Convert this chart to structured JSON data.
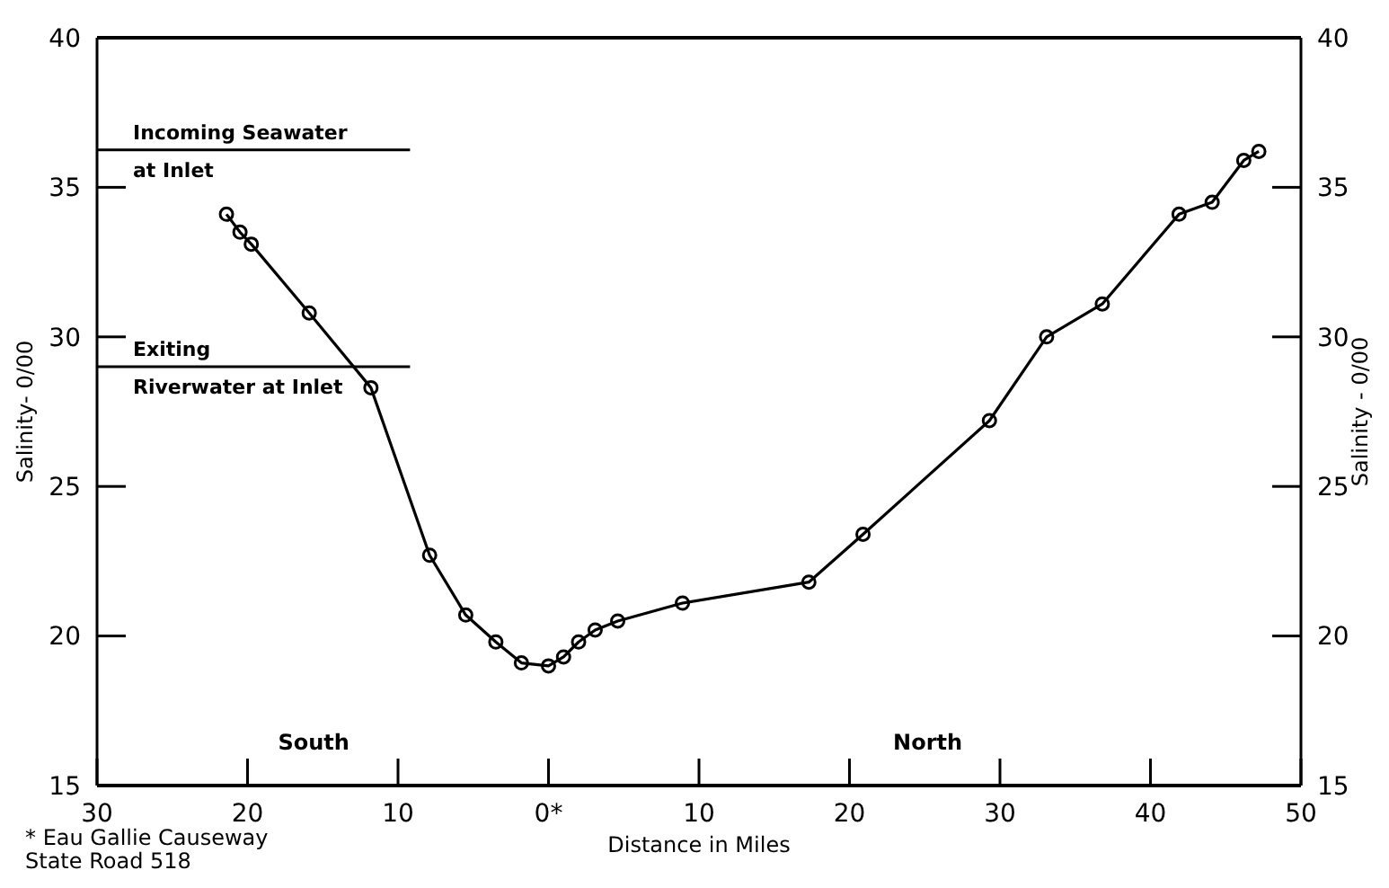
{
  "chart_data": {
    "type": "line",
    "xlabel": "Distance in Miles",
    "ylabel": "Salinity- 0/00",
    "y2label": "Salinity - 0/00",
    "x": [
      -21.4,
      -20.5,
      -19.75,
      -15.9,
      -11.8,
      -7.9,
      -5.5,
      -3.5,
      -1.8,
      0,
      1.0,
      2.0,
      3.1,
      4.6,
      8.9,
      17.3,
      20.9,
      29.3,
      33.1,
      36.8,
      41.9,
      44.1,
      46.2,
      47.2
    ],
    "series": [
      {
        "color": "#000000",
        "values": [
          34.1,
          33.5,
          33.1,
          30.8,
          28.3,
          22.7,
          20.7,
          19.8,
          19.1,
          19.0,
          19.3,
          19.8,
          20.2,
          20.5,
          21.1,
          21.8,
          23.4,
          27.2,
          30.0,
          31.1,
          34.1,
          34.5,
          35.9,
          36.2
        ]
      }
    ],
    "xlim": [
      -30,
      50
    ],
    "xticks": [
      {
        "value": -30,
        "label": "30"
      },
      {
        "value": -20,
        "label": "20"
      },
      {
        "value": -10,
        "label": "10"
      },
      {
        "value": 0,
        "label": "0*"
      },
      10,
      20,
      30,
      40,
      50
    ],
    "ylim": [
      15,
      40
    ],
    "yticks": [
      15,
      20,
      25,
      30,
      35,
      40
    ],
    "y2lim": [
      15,
      40
    ],
    "y2ticks": [
      15,
      20,
      25,
      30,
      35,
      40
    ],
    "marker": "circle",
    "grid": false,
    "ref_lines": [
      {
        "axis": "y",
        "value": 36.25,
        "label": "Incoming Seawater at Inlet"
      },
      {
        "axis": "y",
        "value": 29.0,
        "label": "Exiting Riverwater at Inlet"
      }
    ],
    "annotations": [
      "South",
      "North",
      "* Eau Gallie Causeway",
      "State Road 518"
    ]
  }
}
